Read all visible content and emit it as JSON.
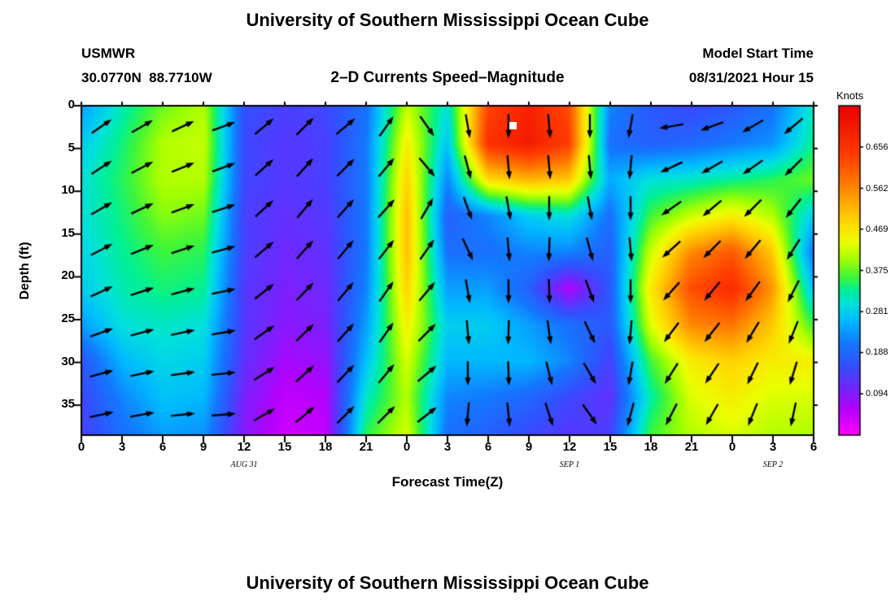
{
  "titles": {
    "top": "University of Southern Mississippi Ocean Cube",
    "bottom": "University of Southern Mississippi Ocean Cube",
    "station": "USMWR",
    "coords": "30.0770N  88.7710W",
    "subtitle": "2–D Currents Speed–Magnitude",
    "model_start_label": "Model Start Time",
    "model_start_value": "08/31/2021 Hour 15"
  },
  "axes": {
    "x_label": "Forecast Time(Z)",
    "y_label": "Depth (ft)",
    "x_ticks": [
      "0",
      "3",
      "6",
      "9",
      "12",
      "15",
      "18",
      "21",
      "0",
      "3",
      "6",
      "9",
      "12",
      "15",
      "18",
      "21",
      "0",
      "3",
      "6"
    ],
    "x_tick_hours": [
      0,
      3,
      6,
      9,
      12,
      15,
      18,
      21,
      24,
      27,
      30,
      33,
      36,
      39,
      42,
      45,
      48,
      51,
      54
    ],
    "y_ticks": [
      "0",
      "5",
      "10",
      "15",
      "20",
      "25",
      "30",
      "35"
    ],
    "y_tick_depths": [
      0,
      5,
      10,
      15,
      20,
      25,
      30,
      35
    ],
    "date_labels": [
      {
        "text": "AUG 31",
        "hour": 12
      },
      {
        "text": "SEP 1",
        "hour": 36
      },
      {
        "text": "SEP 2",
        "hour": 51
      }
    ],
    "x_range": [
      0,
      54
    ],
    "y_range": [
      0,
      38.5
    ]
  },
  "colorbar": {
    "label": "Knots",
    "ticks": [
      "0.656",
      "0.562",
      "0.469",
      "0.375",
      "0.281",
      "0.188",
      "0.094"
    ],
    "tick_values": [
      0.656,
      0.562,
      0.469,
      0.375,
      0.281,
      0.188,
      0.094
    ],
    "range": [
      0,
      0.75
    ],
    "stops": [
      [
        0.0,
        255,
        0,
        255
      ],
      [
        0.06,
        180,
        0,
        255
      ],
      [
        0.11,
        110,
        40,
        255
      ],
      [
        0.16,
        50,
        80,
        255
      ],
      [
        0.21,
        20,
        120,
        255
      ],
      [
        0.26,
        0,
        185,
        255
      ],
      [
        0.3,
        0,
        225,
        220
      ],
      [
        0.33,
        0,
        240,
        150
      ],
      [
        0.36,
        60,
        245,
        60
      ],
      [
        0.4,
        160,
        255,
        0
      ],
      [
        0.44,
        235,
        255,
        0
      ],
      [
        0.48,
        255,
        220,
        0
      ],
      [
        0.53,
        255,
        170,
        0
      ],
      [
        0.58,
        255,
        115,
        0
      ],
      [
        0.64,
        255,
        60,
        0
      ],
      [
        0.75,
        235,
        0,
        0
      ]
    ]
  },
  "chart_data": {
    "type": "heatmap",
    "title": "2–D Currents Speed–Magnitude",
    "xlabel": "Forecast Time(Z)",
    "ylabel": "Depth (ft)",
    "units": "Knots",
    "x_hours": [
      0,
      3,
      6,
      9,
      12,
      15,
      18,
      21,
      24,
      27,
      30,
      33,
      36,
      39,
      42,
      45,
      48,
      51,
      54
    ],
    "depths_ft": [
      1.9,
      5.8,
      9.6,
      13.5,
      17.3,
      21.2,
      25.0,
      28.9,
      32.7,
      36.6
    ],
    "speed_knots": [
      [
        0.24,
        0.32,
        0.38,
        0.41,
        0.16,
        0.14,
        0.15,
        0.2,
        0.42,
        0.3,
        0.63,
        0.69,
        0.62,
        0.22,
        0.17,
        0.15,
        0.17,
        0.2,
        0.31
      ],
      [
        0.28,
        0.34,
        0.41,
        0.42,
        0.15,
        0.13,
        0.14,
        0.21,
        0.46,
        0.27,
        0.66,
        0.7,
        0.64,
        0.2,
        0.18,
        0.19,
        0.21,
        0.23,
        0.33
      ],
      [
        0.3,
        0.35,
        0.41,
        0.41,
        0.15,
        0.13,
        0.14,
        0.21,
        0.49,
        0.22,
        0.48,
        0.52,
        0.5,
        0.25,
        0.3,
        0.31,
        0.33,
        0.35,
        0.38
      ],
      [
        0.3,
        0.34,
        0.39,
        0.38,
        0.14,
        0.12,
        0.13,
        0.21,
        0.51,
        0.18,
        0.22,
        0.28,
        0.3,
        0.2,
        0.36,
        0.42,
        0.46,
        0.41,
        0.28
      ],
      [
        0.29,
        0.33,
        0.36,
        0.35,
        0.14,
        0.11,
        0.12,
        0.21,
        0.51,
        0.2,
        0.2,
        0.22,
        0.22,
        0.18,
        0.42,
        0.56,
        0.61,
        0.5,
        0.21
      ],
      [
        0.28,
        0.32,
        0.34,
        0.33,
        0.13,
        0.1,
        0.11,
        0.22,
        0.49,
        0.24,
        0.24,
        0.18,
        0.06,
        0.17,
        0.46,
        0.62,
        0.67,
        0.55,
        0.27
      ],
      [
        0.24,
        0.3,
        0.31,
        0.3,
        0.13,
        0.09,
        0.1,
        0.24,
        0.46,
        0.28,
        0.28,
        0.24,
        0.2,
        0.17,
        0.43,
        0.56,
        0.58,
        0.5,
        0.36
      ],
      [
        0.17,
        0.26,
        0.29,
        0.28,
        0.12,
        0.07,
        0.08,
        0.27,
        0.43,
        0.26,
        0.26,
        0.26,
        0.22,
        0.14,
        0.36,
        0.46,
        0.49,
        0.46,
        0.46
      ],
      [
        0.15,
        0.22,
        0.27,
        0.26,
        0.1,
        0.05,
        0.06,
        0.31,
        0.41,
        0.22,
        0.21,
        0.19,
        0.15,
        0.12,
        0.32,
        0.43,
        0.46,
        0.43,
        0.43
      ],
      [
        0.14,
        0.2,
        0.24,
        0.23,
        0.09,
        0.04,
        0.05,
        0.35,
        0.43,
        0.2,
        0.18,
        0.15,
        0.13,
        0.14,
        0.36,
        0.41,
        0.43,
        0.41,
        0.41
      ]
    ],
    "arrows": {
      "x_hours": [
        1.5,
        4.5,
        7.5,
        10.5,
        13.5,
        16.5,
        19.5,
        22.5,
        25.5,
        28.5,
        31.5,
        34.5,
        37.5,
        40.5,
        43.5,
        46.5,
        49.5,
        52.5
      ],
      "depths_ft": [
        2.4,
        7.2,
        12.0,
        16.8,
        21.7,
        26.5,
        31.3,
        36.1
      ],
      "angles_deg_ccw_from_east": [
        [
          35,
          30,
          25,
          20,
          40,
          45,
          40,
          55,
          -55,
          -80,
          -90,
          -85,
          -90,
          -100,
          -170,
          -160,
          -150,
          -140
        ],
        [
          33,
          28,
          22,
          20,
          42,
          48,
          45,
          50,
          -50,
          -75,
          -85,
          -85,
          -85,
          -95,
          -155,
          -150,
          -145,
          -135
        ],
        [
          30,
          25,
          20,
          18,
          42,
          50,
          48,
          48,
          60,
          -70,
          -80,
          -90,
          -80,
          -90,
          -145,
          -140,
          -135,
          -128
        ],
        [
          28,
          22,
          18,
          15,
          40,
          48,
          50,
          52,
          55,
          -65,
          -85,
          -92,
          -75,
          -85,
          -138,
          -135,
          -130,
          -122
        ],
        [
          25,
          18,
          15,
          12,
          38,
          46,
          50,
          55,
          50,
          -80,
          -90,
          -88,
          -70,
          -90,
          -132,
          -130,
          -126,
          -117
        ],
        [
          20,
          15,
          12,
          10,
          35,
          44,
          48,
          55,
          45,
          -85,
          -92,
          -82,
          -65,
          -95,
          -127,
          -128,
          -121,
          -112
        ],
        [
          15,
          12,
          8,
          6,
          32,
          42,
          46,
          50,
          40,
          -90,
          -88,
          -76,
          -60,
          -100,
          -122,
          -124,
          -116,
          -107
        ],
        [
          12,
          10,
          6,
          5,
          30,
          40,
          45,
          45,
          38,
          -95,
          -84,
          -72,
          -55,
          -105,
          -117,
          -120,
          -112,
          -102
        ]
      ]
    },
    "white_marker": {
      "hour": 31.8,
      "depth": 2.3
    }
  }
}
